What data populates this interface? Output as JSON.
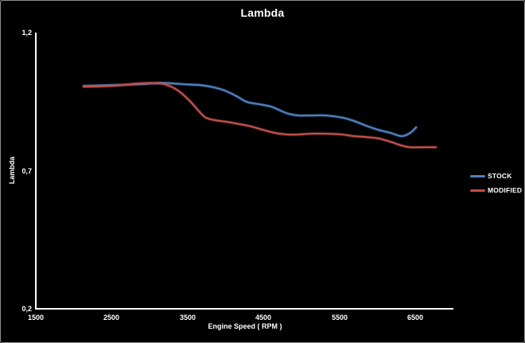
{
  "chart_data": {
    "type": "line",
    "title": "Lambda",
    "xlabel": "Engine Speed ( RPM )",
    "ylabel": "Lambda",
    "xlim": [
      1500,
      7000
    ],
    "ylim": [
      0.2,
      1.2
    ],
    "grid": false,
    "background": "#000000",
    "axis_color": "#ffffff",
    "text_color": "#ffffff",
    "legend_position": "right",
    "x_ticks": {
      "values": [
        1500,
        2500,
        3500,
        4500,
        5500,
        6500
      ],
      "labels": [
        "1500",
        "2500",
        "3500",
        "4500",
        "5500",
        "6500"
      ]
    },
    "y_ticks": {
      "values": [
        1.2,
        0.7,
        0.2
      ],
      "labels": [
        "1,2",
        "0,7",
        "0,2"
      ]
    },
    "series": [
      {
        "name": "STOCK",
        "color": "#4F81BD",
        "points": [
          [
            2130,
            1.007
          ],
          [
            2500,
            1.01
          ],
          [
            2870,
            1.013
          ],
          [
            3130,
            1.018
          ],
          [
            3290,
            1.016
          ],
          [
            3450,
            1.013
          ],
          [
            3660,
            1.01
          ],
          [
            3810,
            1.004
          ],
          [
            3970,
            0.992
          ],
          [
            4130,
            0.972
          ],
          [
            4280,
            0.949
          ],
          [
            4440,
            0.941
          ],
          [
            4600,
            0.932
          ],
          [
            4720,
            0.918
          ],
          [
            4830,
            0.906
          ],
          [
            4960,
            0.9
          ],
          [
            5120,
            0.9
          ],
          [
            5330,
            0.9
          ],
          [
            5540,
            0.892
          ],
          [
            5690,
            0.88
          ],
          [
            5850,
            0.863
          ],
          [
            6010,
            0.848
          ],
          [
            6170,
            0.837
          ],
          [
            6320,
            0.825
          ],
          [
            6430,
            0.837
          ],
          [
            6510,
            0.857
          ]
        ]
      },
      {
        "name": "MODIFIED",
        "color": "#C0504D",
        "points": [
          [
            2130,
            1.004
          ],
          [
            2500,
            1.007
          ],
          [
            2870,
            1.016
          ],
          [
            3130,
            1.016
          ],
          [
            3260,
            1.007
          ],
          [
            3390,
            0.987
          ],
          [
            3530,
            0.952
          ],
          [
            3660,
            0.912
          ],
          [
            3740,
            0.892
          ],
          [
            3860,
            0.883
          ],
          [
            4020,
            0.877
          ],
          [
            4180,
            0.869
          ],
          [
            4340,
            0.86
          ],
          [
            4490,
            0.848
          ],
          [
            4650,
            0.837
          ],
          [
            4810,
            0.831
          ],
          [
            4960,
            0.831
          ],
          [
            5120,
            0.834
          ],
          [
            5330,
            0.834
          ],
          [
            5540,
            0.831
          ],
          [
            5690,
            0.825
          ],
          [
            5850,
            0.822
          ],
          [
            6010,
            0.817
          ],
          [
            6170,
            0.805
          ],
          [
            6320,
            0.791
          ],
          [
            6430,
            0.785
          ],
          [
            6580,
            0.785
          ],
          [
            6770,
            0.785
          ]
        ]
      }
    ]
  }
}
